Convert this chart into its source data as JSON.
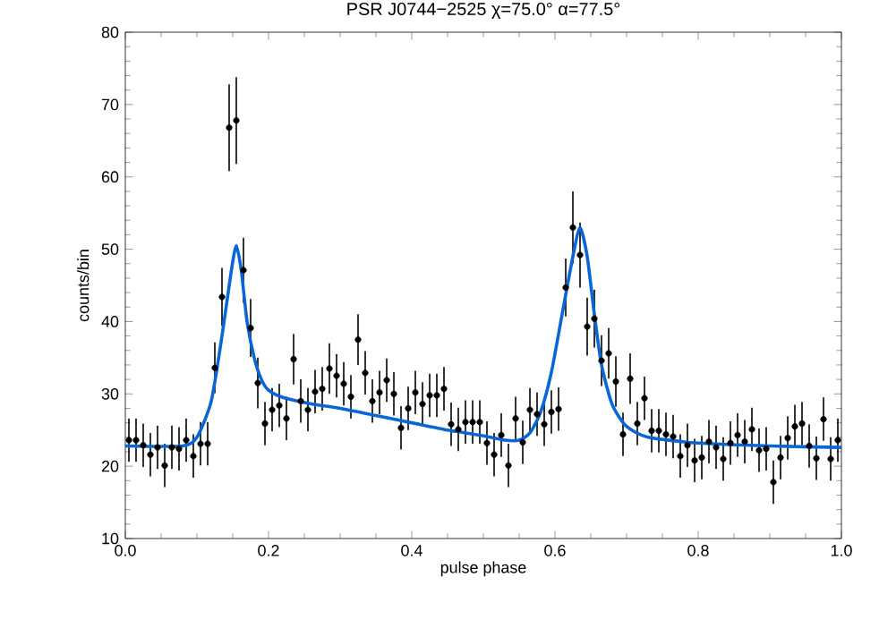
{
  "chart_data": {
    "type": "scatter",
    "title": "PSR J0744−2525  χ=75.0°  α=77.5°",
    "xlabel": "pulse phase",
    "ylabel": "counts/bin",
    "xlim": [
      0,
      1
    ],
    "ylim": [
      10,
      80
    ],
    "xticks": [
      {
        "value": 0,
        "label": "0.0"
      },
      0.2,
      0.4,
      0.6,
      0.8,
      {
        "value": 1,
        "label": "1.0"
      }
    ],
    "yticks": [
      10,
      20,
      30,
      40,
      50,
      60,
      70,
      80
    ],
    "grid": false,
    "legend": false,
    "series": [
      {
        "color": "#000000",
        "marker": "circle",
        "x": [
          0.005,
          0.015,
          0.025,
          0.035,
          0.045,
          0.055,
          0.065,
          0.075,
          0.085,
          0.095,
          0.105,
          0.115,
          0.125,
          0.135,
          0.145,
          0.155,
          0.165,
          0.175,
          0.185,
          0.195,
          0.205,
          0.215,
          0.225,
          0.235,
          0.245,
          0.255,
          0.265,
          0.275,
          0.285,
          0.295,
          0.305,
          0.315,
          0.325,
          0.335,
          0.345,
          0.355,
          0.365,
          0.375,
          0.385,
          0.395,
          0.405,
          0.415,
          0.425,
          0.435,
          0.445,
          0.455,
          0.465,
          0.475,
          0.485,
          0.495,
          0.505,
          0.515,
          0.525,
          0.535,
          0.545,
          0.555,
          0.565,
          0.575,
          0.585,
          0.595,
          0.605,
          0.615,
          0.625,
          0.635,
          0.645,
          0.655,
          0.665,
          0.675,
          0.685,
          0.695,
          0.705,
          0.715,
          0.725,
          0.735,
          0.745,
          0.755,
          0.765,
          0.775,
          0.785,
          0.795,
          0.805,
          0.815,
          0.825,
          0.835,
          0.845,
          0.855,
          0.865,
          0.875,
          0.885,
          0.895,
          0.905,
          0.915,
          0.925,
          0.935,
          0.945,
          0.955,
          0.965,
          0.975,
          0.985,
          0.995
        ],
        "values": [
          23.6,
          23.6,
          22.9,
          21.6,
          22.6,
          20.1,
          22.6,
          22.4,
          23.6,
          21.4,
          23.1,
          23.1,
          33.6,
          43.4,
          66.8,
          67.8,
          47.1,
          39.1,
          31.5,
          25.9,
          27.8,
          28.4,
          26.6,
          34.8,
          29.0,
          27.8,
          30.3,
          30.7,
          33.5,
          32.5,
          31.4,
          29.6,
          37.5,
          32.9,
          29.0,
          30.2,
          31.9,
          30.0,
          25.3,
          28.0,
          30.2,
          28.6,
          29.8,
          29.8,
          30.7,
          25.8,
          25.1,
          26.1,
          26.1,
          26.1,
          23.2,
          21.6,
          24.3,
          20.1,
          26.6,
          23.3,
          27.8,
          27.2,
          25.8,
          27.5,
          27.9,
          44.7,
          53.0,
          49.2,
          39.3,
          40.4,
          34.6,
          35.6,
          31.7,
          24.4,
          32.1,
          25.9,
          29.4,
          24.9,
          24.9,
          24.4,
          24.1,
          21.4,
          22.9,
          20.8,
          21.2,
          23.4,
          22.6,
          21.0,
          23.2,
          24.3,
          23.4,
          25.1,
          22.2,
          22.4,
          17.8,
          21.2,
          23.9,
          25.5,
          25.9,
          22.8,
          21.1,
          26.5,
          21.0,
          23.6
        ],
        "errors": [
          3,
          3,
          3,
          3,
          3,
          3,
          3,
          3,
          3,
          3,
          3,
          3,
          3.5,
          4,
          6,
          6,
          4.5,
          4,
          3.5,
          3,
          3,
          3,
          3,
          3.5,
          3,
          3,
          3,
          3,
          3.5,
          3,
          3,
          3,
          3.5,
          3,
          3,
          3,
          3,
          3,
          3,
          3,
          3,
          3,
          3,
          3,
          3,
          3,
          3,
          3,
          3,
          3,
          3,
          3,
          3,
          3,
          3,
          3,
          3,
          3,
          3,
          3,
          3,
          4,
          5,
          4.5,
          4,
          4,
          3.5,
          3.5,
          3.5,
          3,
          3.5,
          3,
          3,
          3,
          3,
          3,
          3,
          3,
          3,
          3,
          3,
          3,
          3,
          3,
          3,
          3,
          3,
          3,
          3,
          3,
          3,
          3,
          3,
          3,
          3,
          3,
          3,
          3,
          3,
          3
        ]
      },
      {
        "type": "line",
        "color": "#0a66d6",
        "line_style": "solid",
        "x": [
          0,
          0.08,
          0.1,
          0.12,
          0.135,
          0.148,
          0.155,
          0.162,
          0.17,
          0.18,
          0.19,
          0.2,
          0.22,
          0.26,
          0.3,
          0.35,
          0.4,
          0.45,
          0.5,
          0.53,
          0.55,
          0.565,
          0.58,
          0.595,
          0.61,
          0.625,
          0.635,
          0.645,
          0.655,
          0.665,
          0.68,
          0.7,
          0.73,
          0.8,
          0.9,
          1.0
        ],
        "values": [
          22.8,
          22.8,
          24,
          29,
          38,
          47,
          50.5,
          47,
          40,
          35,
          32,
          30.5,
          29.5,
          28.6,
          28,
          27,
          26,
          25,
          24.2,
          23.6,
          23.6,
          24.6,
          27.5,
          33,
          41,
          49,
          53,
          49,
          41,
          34,
          28.5,
          25.5,
          24,
          23.2,
          22.8,
          22.6
        ]
      }
    ]
  }
}
